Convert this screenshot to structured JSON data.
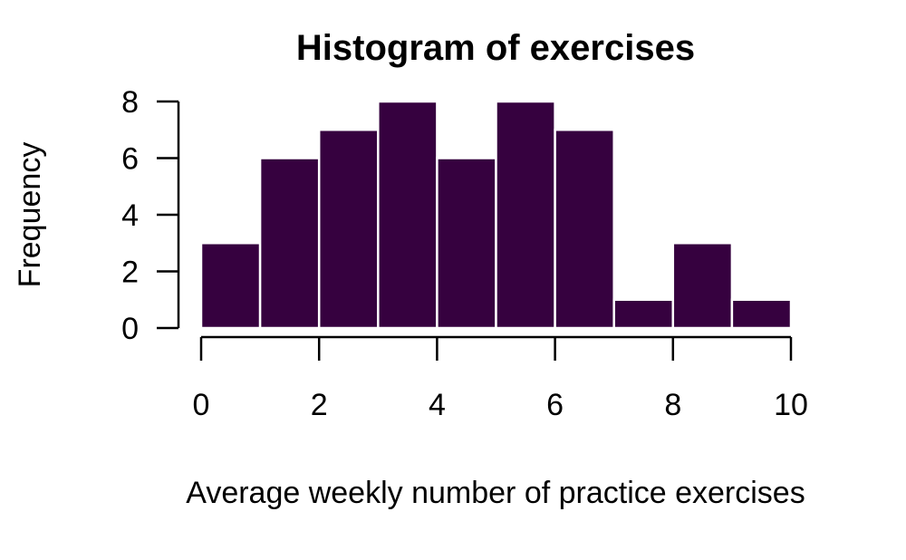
{
  "chart_data": {
    "type": "bar",
    "title": "Histogram of exercises",
    "xlabel": "Average weekly number of practice exercises",
    "ylabel": "Frequency",
    "bins": [
      {
        "from": 0,
        "to": 1,
        "count": 3
      },
      {
        "from": 1,
        "to": 2,
        "count": 6
      },
      {
        "from": 2,
        "to": 3,
        "count": 7
      },
      {
        "from": 3,
        "to": 4,
        "count": 8
      },
      {
        "from": 4,
        "to": 5,
        "count": 6
      },
      {
        "from": 5,
        "to": 6,
        "count": 8
      },
      {
        "from": 6,
        "to": 7,
        "count": 7
      },
      {
        "from": 7,
        "to": 8,
        "count": 1
      },
      {
        "from": 8,
        "to": 9,
        "count": 3
      },
      {
        "from": 9,
        "to": 10,
        "count": 1
      }
    ],
    "xlim": [
      0,
      10
    ],
    "ylim": [
      0,
      8
    ],
    "x_ticks": [
      0,
      2,
      4,
      6,
      8,
      10
    ],
    "y_ticks": [
      0,
      2,
      4,
      6,
      8
    ],
    "bar_color": "#36013f",
    "bar_border_color": "#ffffff",
    "grid": false,
    "legend": "none"
  }
}
